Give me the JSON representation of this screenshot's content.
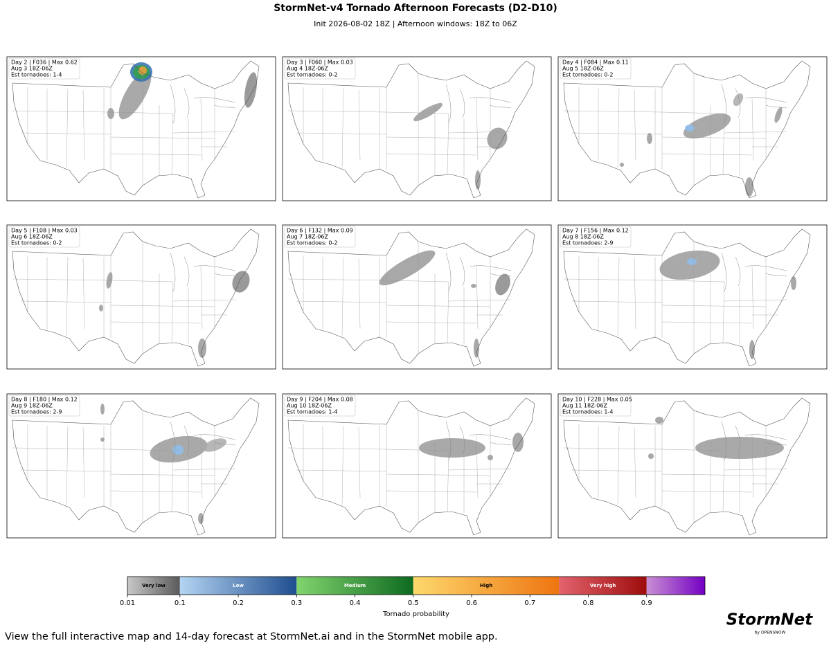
{
  "title": "StormNet-v4 Tornado Afternoon Forecasts (D2-D10)",
  "subtitle": "Init 2026-08-02 18Z | Afternoon windows: 18Z to 06Z",
  "panels": [
    {
      "lines": [
        "Day 2 | F036 | Max 0.62",
        "Aug 3 18Z-06Z",
        "Est tornadoes: 1-4"
      ]
    },
    {
      "lines": [
        "Day 3 | F060 | Max 0.03",
        "Aug 4 18Z-06Z",
        "Est tornadoes: 0-2"
      ]
    },
    {
      "lines": [
        "Day 4 | F084 | Max 0.11",
        "Aug 5 18Z-06Z",
        "Est tornadoes: 0-2"
      ]
    },
    {
      "lines": [
        "Day 5 | F108 | Max 0.03",
        "Aug 6 18Z-06Z",
        "Est tornadoes: 0-2"
      ]
    },
    {
      "lines": [
        "Day 6 | F132 | Max 0.09",
        "Aug 7 18Z-06Z",
        "Est tornadoes: 0-2"
      ]
    },
    {
      "lines": [
        "Day 7 | F156 | Max 0.12",
        "Aug 8 18Z-06Z",
        "Est tornadoes: 2-9"
      ]
    },
    {
      "lines": [
        "Day 8 | F180 | Max 0.12",
        "Aug 9 18Z-06Z",
        "Est tornadoes: 2-9"
      ]
    },
    {
      "lines": [
        "Day 9 | F204 | Max 0.08",
        "Aug 10 18Z-06Z",
        "Est tornadoes: 1-4"
      ]
    },
    {
      "lines": [
        "Day 10 | F228 | Max 0.05",
        "Aug 11 18Z-06Z",
        "Est tornadoes: 1-4"
      ]
    }
  ],
  "colorbar": {
    "label": "Tornado probability",
    "lim": [
      0.01,
      1.0
    ],
    "ticks": [
      0.01,
      0.1,
      0.2,
      0.3,
      0.4,
      0.5,
      0.6,
      0.7,
      0.8,
      0.9
    ],
    "categories": [
      {
        "label": "Very low",
        "from": 0.01,
        "to": 0.1,
        "colors": [
          "#c8c8c8",
          "#5a5a5a"
        ]
      },
      {
        "label": "Low",
        "from": 0.1,
        "to": 0.3,
        "colors": [
          "#b4d4f2",
          "#1f4e8f"
        ]
      },
      {
        "label": "Medium",
        "from": 0.3,
        "to": 0.5,
        "colors": [
          "#82d46e",
          "#0d6a1f"
        ]
      },
      {
        "label": "High",
        "from": 0.5,
        "to": 0.75,
        "colors": [
          "#fdd86c",
          "#ee7511"
        ]
      },
      {
        "label": "Very high",
        "from": 0.75,
        "to": 0.9,
        "colors": [
          "#e2636d",
          "#9e0c0c"
        ]
      },
      {
        "from": 0.9,
        "to": 1.0,
        "colors": [
          "#c98fd3",
          "#7400c4"
        ]
      }
    ]
  },
  "footer": "View the full interactive map and 14-day forecast at StormNet.ai and in the StormNet mobile app.",
  "logo": {
    "name": "StormNet",
    "by": "by OPENSNOW"
  }
}
